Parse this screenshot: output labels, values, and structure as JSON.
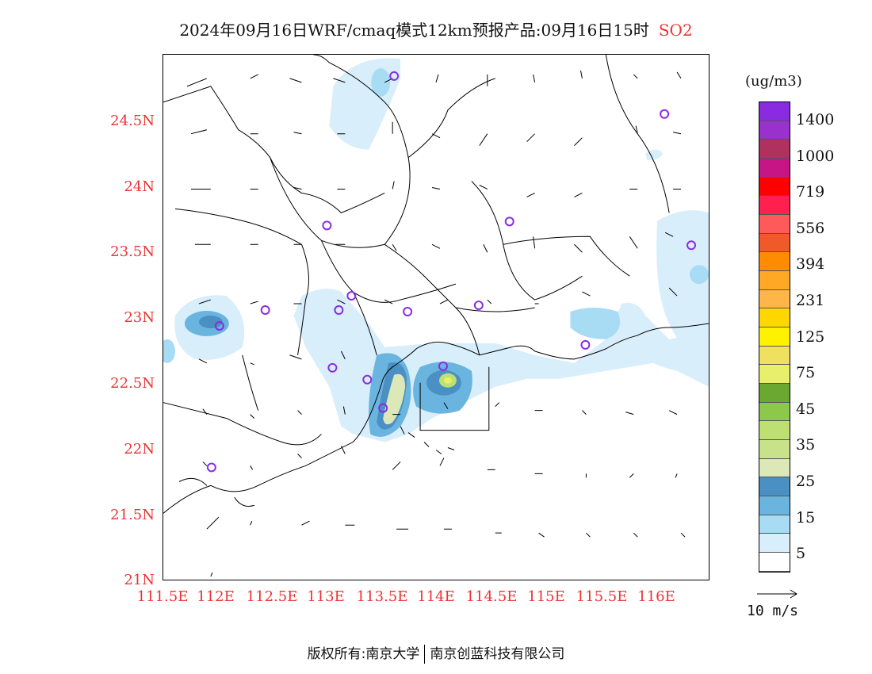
{
  "title": {
    "main": "2024年09月16日WRF/cmaq模式12km预报产品:09月16日15时",
    "species": "SO2",
    "species_color": "#e33333"
  },
  "axes": {
    "y_ticks": [
      "24.5N",
      "24N",
      "23.5N",
      "23N",
      "22.5N",
      "22N",
      "21.5N",
      "21N"
    ],
    "x_ticks": [
      "111.5E",
      "112E",
      "112.5E",
      "113E",
      "113.5E",
      "114E",
      "114.5E",
      "115E",
      "115.5E",
      "116E"
    ],
    "tick_color": "#e33333"
  },
  "colorbar": {
    "unit": "(ug/m3)",
    "labels": [
      "1400",
      "1000",
      "719",
      "556",
      "394",
      "231",
      "125",
      "75",
      "45",
      "35",
      "25",
      "15",
      "5"
    ],
    "colors": [
      "#8a2be2",
      "#9932cc",
      "#b03060",
      "#c71585",
      "#ff0000",
      "#ff2050",
      "#ff5a5a",
      "#f05a28",
      "#ff8c00",
      "#ffa826",
      "#ffb547",
      "#ffd700",
      "#fff200",
      "#f0e060",
      "#e8ef6a",
      "#6aa832",
      "#8cc84a",
      "#bee072",
      "#c8e28c",
      "#dde8b8",
      "#4a90c2",
      "#6ab4e0",
      "#a8dcf4",
      "#d8eefa",
      "#ffffff"
    ]
  },
  "vector_legend": "10 m/s",
  "footer": {
    "left": "版权所有:南京大学",
    "right": "南京创蓝科技有限公司"
  }
}
